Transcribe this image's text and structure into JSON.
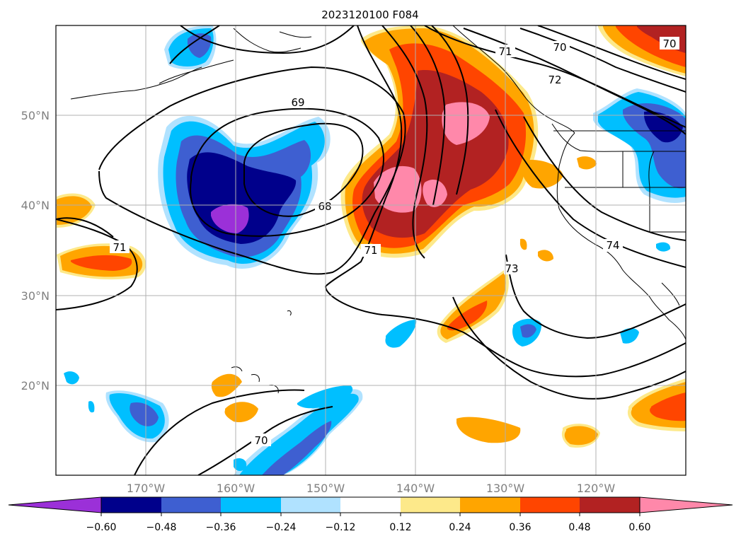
{
  "title": "2023120100 F084",
  "lat_labels": [
    "50°N",
    "40°N",
    "30°N",
    "20°N"
  ],
  "lon_labels": [
    "170°W",
    "160°W",
    "150°W",
    "140°W",
    "130°W",
    "120°W"
  ],
  "contour_labels": [
    "69",
    "68",
    "71",
    "70",
    "71",
    "72",
    "70",
    "74",
    "71",
    "73",
    "70"
  ],
  "colorbar": {
    "ticks": [
      "−0.60",
      "−0.48",
      "−0.36",
      "−0.24",
      "−0.12",
      "0.12",
      "0.24",
      "0.36",
      "0.48",
      "0.60"
    ],
    "colors": {
      "lt_-0.60": "#9b30d8",
      "-0.60_-0.48": "#00008b",
      "-0.48_-0.36": "#3e5fd1",
      "-0.36_-0.24": "#00bfff",
      "-0.24_-0.12": "#b0e2ff",
      "-0.12_0.12": "#ffffff",
      "0.12_0.24": "#fde98a",
      "0.24_0.36": "#ffa500",
      "0.36_0.48": "#ff4500",
      "0.48_0.60": "#b22222",
      "gt_0.60": "#ff88aa"
    }
  }
}
